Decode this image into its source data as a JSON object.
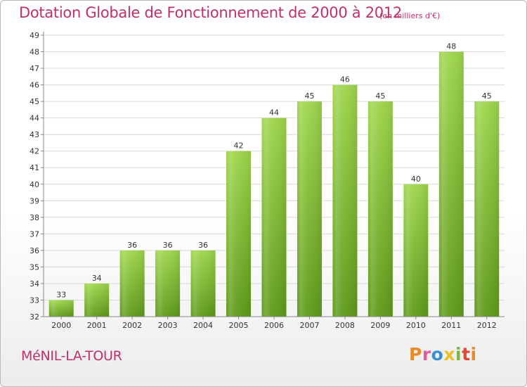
{
  "header": {
    "title": "Dotation Globale de Fonctionnement de 2000 à 2012",
    "subtitle": "(en milliers d'€)"
  },
  "footer": {
    "commune": "MéNIL-LA-TOUR",
    "brand": "Proxiti",
    "brand_colors": [
      "#e8892a",
      "#e05a9c",
      "#3a8fd0",
      "#e8c12a",
      "#7ab648",
      "#e2483a",
      "#e8892a"
    ]
  },
  "colors": {
    "bar_light": "#9bd24a",
    "bar_dark": "#5d9718",
    "axis": "#888888",
    "grid": "#d8d8d8",
    "accent": "#c0306c"
  },
  "chart_data": {
    "type": "bar",
    "categories": [
      "2000",
      "2001",
      "2002",
      "2003",
      "2004",
      "2005",
      "2006",
      "2007",
      "2008",
      "2009",
      "2010",
      "2011",
      "2012"
    ],
    "values": [
      33,
      34,
      36,
      36,
      36,
      42,
      44,
      45,
      46,
      45,
      40,
      48,
      45
    ],
    "data_labels": [
      "33",
      "34",
      "36",
      "36",
      "36",
      "42",
      "44",
      "45",
      "46",
      "45",
      "40",
      "48",
      "45"
    ],
    "ylim": [
      32,
      49
    ],
    "yticks": [
      32,
      33,
      34,
      35,
      36,
      37,
      38,
      39,
      40,
      41,
      42,
      43,
      44,
      45,
      46,
      47,
      48,
      49
    ],
    "grid": "horizontal",
    "title": "Dotation Globale de Fonctionnement de 2000 à 2012",
    "ylabel": "(en milliers d'€)",
    "xlabel": ""
  }
}
